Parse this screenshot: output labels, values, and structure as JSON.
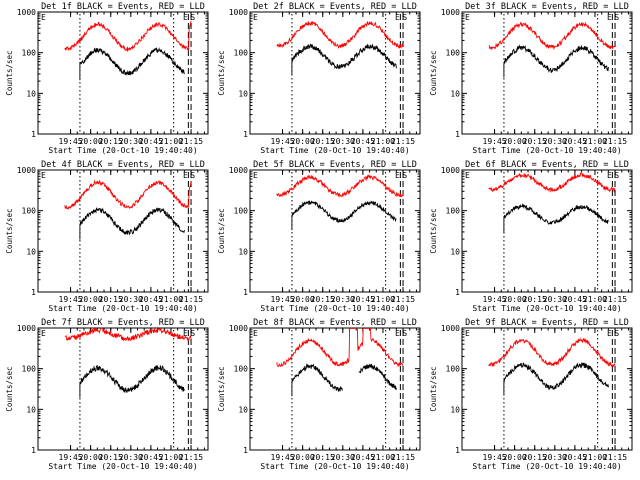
{
  "figure": {
    "y_axis_label": "Counts/sec",
    "x_axis_label": "Start Time (20-Oct-10 19:40:40)",
    "x_start_seconds": 69640,
    "x_end_seconds": 77260,
    "y_range": [
      1,
      1000
    ],
    "y_scale": "log",
    "y_tick_labels": [
      "1",
      "10",
      "100",
      "1000"
    ],
    "x_tick_labels": [
      "19:45",
      "20:00",
      "20:15",
      "20:30",
      "20:45",
      "21:00",
      "21:15"
    ],
    "colors": {
      "events": "#000000",
      "lld": "#ff0000"
    }
  },
  "chart_data": [
    {
      "type": "line",
      "title": "Det 1f BLACK = Events, RED = LLD",
      "markers": [
        "E",
        "E",
        "S"
      ],
      "series": [
        {
          "name": "Events",
          "color": "#000000",
          "start": "19:52",
          "end": "21:10",
          "base": 60,
          "amp": 0.28,
          "dip_at": 0.3,
          "noise": 0.06
        },
        {
          "name": "LLD",
          "color": "#ff0000",
          "start": "19:40:40",
          "end": "21:15",
          "base": 250,
          "amp": 0.3,
          "dip_at": 0.3,
          "noise": 0.05,
          "spike_end": 600
        }
      ]
    },
    {
      "type": "line",
      "title": "Det 2f BLACK = Events, RED = LLD",
      "markers": [
        "E",
        "E",
        "S"
      ],
      "series": [
        {
          "name": "Events",
          "color": "#000000",
          "start": "19:52",
          "end": "21:10",
          "base": 80,
          "amp": 0.25,
          "dip_at": 0.3,
          "noise": 0.06
        },
        {
          "name": "LLD",
          "color": "#ff0000",
          "start": "19:40:40",
          "end": "21:15",
          "base": 280,
          "amp": 0.28,
          "dip_at": 0.3,
          "noise": 0.05
        }
      ]
    },
    {
      "type": "line",
      "title": "Det 3f BLACK = Events, RED = LLD",
      "markers": [
        "E",
        "E",
        "S"
      ],
      "series": [
        {
          "name": "Events",
          "color": "#000000",
          "start": "19:52",
          "end": "21:10",
          "base": 70,
          "amp": 0.27,
          "dip_at": 0.3,
          "noise": 0.06
        },
        {
          "name": "LLD",
          "color": "#ff0000",
          "start": "19:40:40",
          "end": "21:15",
          "base": 260,
          "amp": 0.28,
          "dip_at": 0.3,
          "noise": 0.05
        }
      ]
    },
    {
      "type": "line",
      "title": "Det 4f BLACK = Events, RED = LLD",
      "markers": [
        "E",
        "E",
        "S"
      ],
      "series": [
        {
          "name": "Events",
          "color": "#000000",
          "start": "19:52",
          "end": "21:10",
          "base": 55,
          "amp": 0.28,
          "dip_at": 0.3,
          "noise": 0.06
        },
        {
          "name": "LLD",
          "color": "#ff0000",
          "start": "19:40:40",
          "end": "21:15",
          "base": 250,
          "amp": 0.3,
          "dip_at": 0.3,
          "noise": 0.05,
          "spike_end": 500
        }
      ]
    },
    {
      "type": "line",
      "title": "Det 5f BLACK = Events, RED = LLD",
      "markers": [
        "E",
        "E",
        "S"
      ],
      "series": [
        {
          "name": "Events",
          "color": "#000000",
          "start": "19:52",
          "end": "21:10",
          "base": 95,
          "amp": 0.22,
          "dip_at": 0.3,
          "noise": 0.05
        },
        {
          "name": "LLD",
          "color": "#ff0000",
          "start": "19:40:40",
          "end": "21:15",
          "base": 400,
          "amp": 0.22,
          "dip_at": 0.3,
          "noise": 0.05
        }
      ]
    },
    {
      "type": "line",
      "title": "Det 6f BLACK = Events, RED = LLD",
      "markers": [
        "E",
        "E",
        "S"
      ],
      "series": [
        {
          "name": "Events",
          "color": "#000000",
          "start": "19:52",
          "end": "21:10",
          "base": 80,
          "amp": 0.2,
          "dip_at": 0.3,
          "noise": 0.05
        },
        {
          "name": "LLD",
          "color": "#ff0000",
          "start": "19:40:40",
          "end": "21:15",
          "base": 500,
          "amp": 0.18,
          "dip_at": 0.3,
          "noise": 0.05
        }
      ]
    },
    {
      "type": "line",
      "title": "Det 7f BLACK = Events, RED = LLD",
      "markers": [
        "E",
        "E",
        "S"
      ],
      "series": [
        {
          "name": "Events",
          "color": "#000000",
          "start": "19:52",
          "end": "21:10",
          "base": 55,
          "amp": 0.28,
          "dip_at": 0.3,
          "noise": 0.07
        },
        {
          "name": "LLD",
          "color": "#ff0000",
          "start": "19:40:40",
          "end": "21:15",
          "base": 700,
          "amp": 0.1,
          "dip_at": 0.3,
          "noise": 0.06
        }
      ]
    },
    {
      "type": "line",
      "title": "Det 8f BLACK = Events, RED = LLD",
      "markers": [
        "E",
        "E",
        "S"
      ],
      "series": [
        {
          "name": "Events",
          "color": "#000000",
          "start": "19:52",
          "end": "21:10",
          "base": 60,
          "amp": 0.28,
          "dip_at": 0.3,
          "noise": 0.06,
          "gap": [
            "20:30",
            "20:42"
          ]
        },
        {
          "name": "LLD",
          "color": "#ff0000",
          "start": "19:40:40",
          "end": "21:15",
          "base": 250,
          "amp": 0.3,
          "dip_at": 0.3,
          "noise": 0.05,
          "saturate": [
            "20:35",
            "20:52"
          ]
        }
      ]
    },
    {
      "type": "line",
      "title": "Det 9f BLACK = Events, RED = LLD",
      "markers": [
        "E",
        "E",
        "S"
      ],
      "series": [
        {
          "name": "Events",
          "color": "#000000",
          "start": "19:52",
          "end": "21:10",
          "base": 65,
          "amp": 0.28,
          "dip_at": 0.3,
          "noise": 0.06
        },
        {
          "name": "LLD",
          "color": "#ff0000",
          "start": "19:40:40",
          "end": "21:15",
          "base": 250,
          "amp": 0.3,
          "dip_at": 0.3,
          "noise": 0.05
        }
      ]
    }
  ]
}
